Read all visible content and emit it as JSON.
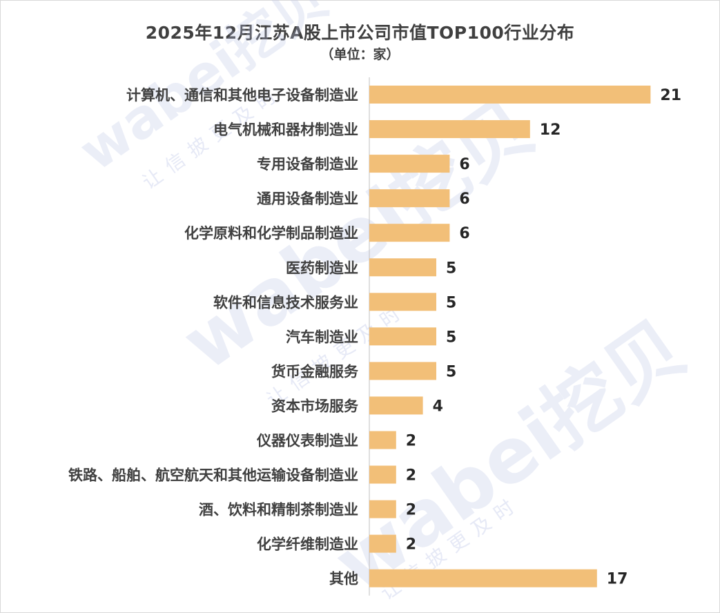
{
  "title": "2025年12月江苏A股上市公司市值TOP100行业分布",
  "subtitle": "（单位：家）",
  "watermark": {
    "brand": "wabei挖贝",
    "slogan": "让信披更及时"
  },
  "colors": {
    "bar": "#F2BF78",
    "axis": "#BFBFBF",
    "text": "#404040"
  },
  "chart_data": {
    "type": "bar",
    "orientation": "horizontal",
    "title": "2025年12月江苏A股上市公司市值TOP100行业分布",
    "subtitle": "（单位：家）",
    "categories": [
      "计算机、通信和其他电子设备制造业",
      "电气机械和器材制造业",
      "专用设备制造业",
      "通用设备制造业",
      "化学原料和化学制品制造业",
      "医药制造业",
      "软件和信息技术服务业",
      "汽车制造业",
      "货币金融服务",
      "资本市场服务",
      "仪器仪表制造业",
      "铁路、船舶、航空航天和其他运输设备制造业",
      "酒、饮料和精制茶制造业",
      "化学纤维制造业",
      "其他"
    ],
    "values": [
      21,
      12,
      6,
      6,
      6,
      5,
      5,
      5,
      5,
      4,
      2,
      2,
      2,
      2,
      17
    ],
    "xlim": [
      0,
      21
    ],
    "grid": false,
    "data_labels": true
  }
}
